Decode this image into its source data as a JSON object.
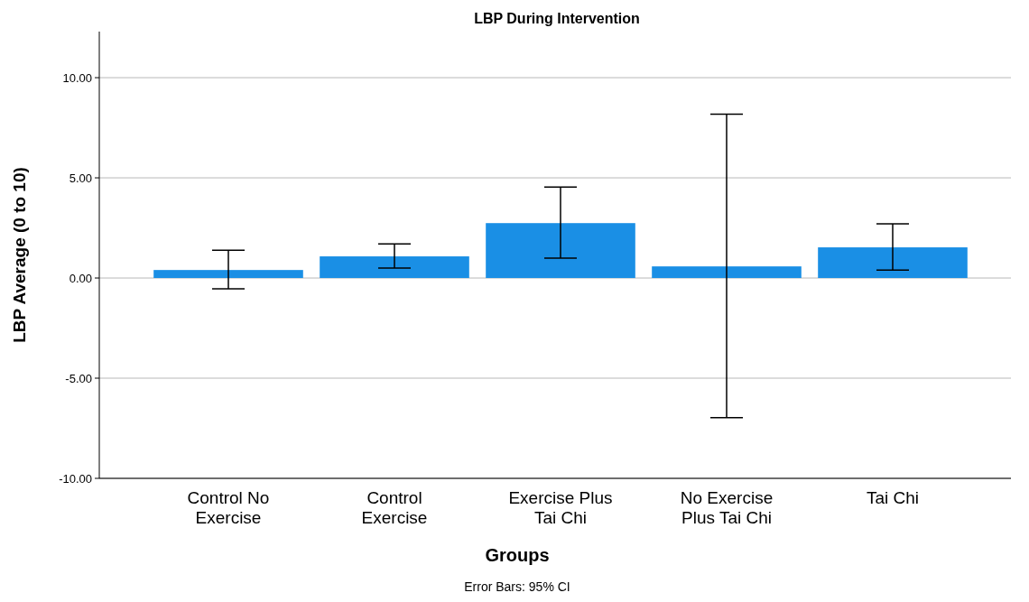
{
  "chart_data": {
    "type": "bar",
    "title": "LBP During Intervention",
    "xlabel": "Groups",
    "ylabel": "LBP Average (0 to 10)",
    "categories": [
      "Control No Exercise",
      "Control Exercise",
      "Exercise Plus Tai Chi",
      "No Exercise Plus Tai Chi",
      "Tai Chi"
    ],
    "values": [
      0.4,
      1.08,
      2.74,
      0.58,
      1.53
    ],
    "errors": [
      [
        -0.54,
        1.39
      ],
      [
        0.5,
        1.7
      ],
      [
        0.99,
        4.54
      ],
      [
        -6.97,
        8.18
      ],
      [
        0.4,
        2.7
      ]
    ],
    "color": "#1a8fe5",
    "ylim": [
      -10,
      12.3
    ],
    "yticks": [
      {
        "value": -10,
        "label": "-10.00"
      },
      {
        "value": -5,
        "label": "-5.00"
      },
      {
        "value": 0,
        "label": "0.00"
      },
      {
        "value": 5,
        "label": "5.00"
      },
      {
        "value": 10,
        "label": "10.00"
      }
    ],
    "grid": "y",
    "annotations": [
      "Error Bars: 95% CI"
    ]
  }
}
